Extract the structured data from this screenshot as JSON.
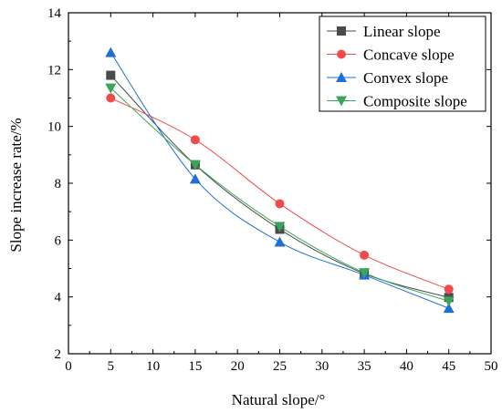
{
  "chart_data": {
    "type": "line",
    "title": "",
    "xlabel": "Natural slope/°",
    "ylabel": "Slope increase rate/%",
    "xlim": [
      0,
      50
    ],
    "ylim": [
      2,
      14
    ],
    "xticks": [
      0,
      5,
      10,
      15,
      20,
      25,
      30,
      35,
      40,
      45,
      50
    ],
    "yticks": [
      2,
      4,
      6,
      8,
      10,
      12,
      14
    ],
    "x": [
      5,
      15,
      25,
      35,
      45
    ],
    "grid": false,
    "legend_position": "top-right",
    "series": [
      {
        "name": "Linear slope",
        "values": [
          11.8,
          8.65,
          6.38,
          4.82,
          3.98
        ],
        "color": "#4a4a4a",
        "marker": "square"
      },
      {
        "name": "Concave slope",
        "values": [
          11.0,
          9.53,
          7.28,
          5.47,
          4.27
        ],
        "color": "#f04b4b",
        "marker": "circle"
      },
      {
        "name": "Convex slope",
        "values": [
          12.6,
          8.15,
          5.93,
          4.77,
          3.6
        ],
        "color": "#1f6fd6",
        "marker": "triangle-up"
      },
      {
        "name": "Composite slope",
        "values": [
          11.35,
          8.65,
          6.48,
          4.85,
          3.85
        ],
        "color": "#3aa65a",
        "marker": "triangle-down"
      }
    ]
  }
}
